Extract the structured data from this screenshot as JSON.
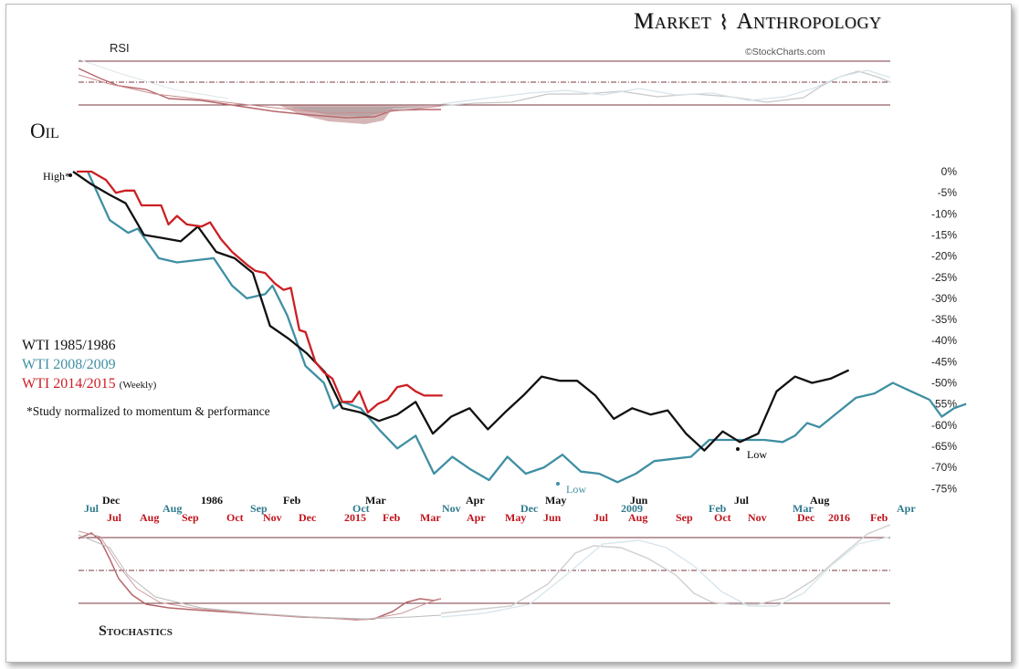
{
  "header": {
    "brand_left": "Market",
    "brand_right": "Anthropology",
    "credit": "©StockCharts.com"
  },
  "panels": {
    "rsi_label": "RSI",
    "main_title": "Oil",
    "stochastics_label": "Stochastics"
  },
  "legend": {
    "items": [
      {
        "label": "WTI 1985/1986",
        "suffix": "",
        "color": "#111111"
      },
      {
        "label": "WTI 2008/2009",
        "suffix": "",
        "color": "#3f8fa3"
      },
      {
        "label": "WTI 2014/2015",
        "suffix": "(Weekly)",
        "color": "#cc1f24"
      }
    ],
    "note": "*Study normalized to momentum & performance"
  },
  "colors": {
    "black_series": "#111111",
    "teal_series": "#3f8fa3",
    "red_series": "#cc1f24",
    "guide_lines": "#7a3a40",
    "date_teal": "#2f7a8e",
    "date_red": "#c0141c"
  },
  "annotations": {
    "high": "High*",
    "low_black": "Low",
    "low_teal": "Low"
  },
  "x_axis": {
    "black_dates": [
      "Dec",
      "1986",
      "Feb",
      "Mar",
      "Apr",
      "May",
      "Jun",
      "Jul",
      "Aug"
    ],
    "teal_dates": [
      "Jul",
      "Aug",
      "Sep",
      "Oct",
      "Nov",
      "Dec",
      "2009",
      "Feb",
      "Mar",
      "Apr"
    ],
    "red_dates": [
      "Jul",
      "Aug",
      "Sep",
      "Oct",
      "Nov",
      "Dec",
      "2015",
      "Feb",
      "Mar",
      "Apr",
      "May",
      "Jun",
      "Jul",
      "Aug",
      "Sep",
      "Oct",
      "Nov",
      "Dec",
      "2016",
      "Feb"
    ]
  },
  "chart_data": {
    "type": "line",
    "y_unit": "% from high",
    "ylim": [
      -75,
      0
    ],
    "y_ticks": [
      "0%",
      "-5%",
      "-10%",
      "-15%",
      "-20%",
      "-25%",
      "-30%",
      "-35%",
      "-40%",
      "-45%",
      "-50%",
      "-55%",
      "-60%",
      "-65%",
      "-70%",
      "-75%"
    ],
    "x_unit": "weeks from high",
    "series": [
      {
        "name": "WTI 1985/1986",
        "points": [
          [
            0,
            0
          ],
          [
            1.5,
            -3
          ],
          [
            3,
            -5.5
          ],
          [
            4.3,
            -7.5
          ],
          [
            5.8,
            -15
          ],
          [
            7.3,
            -15.7
          ],
          [
            8.8,
            -16.5
          ],
          [
            10.2,
            -13
          ],
          [
            11.7,
            -19
          ],
          [
            13.2,
            -20.5
          ],
          [
            14.7,
            -24
          ],
          [
            16.1,
            -36.5
          ],
          [
            17.6,
            -39.5
          ],
          [
            19.1,
            -43
          ],
          [
            20.6,
            -47.5
          ],
          [
            22,
            -56
          ],
          [
            23.5,
            -57
          ],
          [
            25,
            -59
          ],
          [
            26.5,
            -57.5
          ],
          [
            28,
            -54.5
          ],
          [
            29.4,
            -62
          ],
          [
            30.9,
            -58
          ],
          [
            32.4,
            -56
          ],
          [
            33.9,
            -61
          ],
          [
            35.3,
            -57
          ],
          [
            36.8,
            -53
          ],
          [
            38.3,
            -48.5
          ],
          [
            39.8,
            -49.5
          ],
          [
            41.2,
            -49.5
          ],
          [
            42.7,
            -53
          ],
          [
            44.2,
            -58.5
          ],
          [
            45.7,
            -56
          ],
          [
            47.2,
            -57.5
          ],
          [
            48.6,
            -56.5
          ],
          [
            50.1,
            -62
          ],
          [
            51.6,
            -66
          ],
          [
            53.1,
            -61.5
          ],
          [
            54.5,
            -64
          ],
          [
            56,
            -62
          ],
          [
            57.5,
            -52
          ],
          [
            59,
            -48.5
          ],
          [
            60.4,
            -50
          ],
          [
            61.9,
            -49
          ],
          [
            63.4,
            -47
          ]
        ]
      },
      {
        "name": "WTI 2008/2009",
        "points": [
          [
            1.2,
            0
          ],
          [
            3,
            -11.5
          ],
          [
            4.5,
            -14.5
          ],
          [
            5.3,
            -13.5
          ],
          [
            7,
            -20.5
          ],
          [
            8.5,
            -21.5
          ],
          [
            11.5,
            -20.5
          ],
          [
            13,
            -27
          ],
          [
            14.2,
            -30
          ],
          [
            15.7,
            -29
          ],
          [
            16.3,
            -27
          ],
          [
            17.5,
            -34
          ],
          [
            19,
            -46
          ],
          [
            20.5,
            -50
          ],
          [
            21.3,
            -56
          ],
          [
            22,
            -54.5
          ],
          [
            23.5,
            -56
          ],
          [
            25,
            -61
          ],
          [
            26.5,
            -65.5
          ],
          [
            28,
            -62.5
          ],
          [
            29.5,
            -71.5
          ],
          [
            31,
            -67.5
          ],
          [
            32.5,
            -70.5
          ],
          [
            34,
            -73
          ],
          [
            35.5,
            -67.5
          ],
          [
            37,
            -71.5
          ],
          [
            38.5,
            -70
          ],
          [
            40,
            -67
          ],
          [
            41.5,
            -71
          ],
          [
            43,
            -71.5
          ],
          [
            44.5,
            -73.5
          ],
          [
            46,
            -71.5
          ],
          [
            47.5,
            -68.5
          ],
          [
            49,
            -68
          ],
          [
            50.5,
            -67.5
          ],
          [
            52,
            -63.5
          ],
          [
            53.5,
            -63.5
          ],
          [
            56.5,
            -63.5
          ],
          [
            58,
            -64
          ],
          [
            59,
            -62.5
          ],
          [
            60,
            -59.5
          ],
          [
            61,
            -60.5
          ],
          [
            62.5,
            -57
          ],
          [
            64,
            -53.5
          ],
          [
            65.5,
            -52.5
          ],
          [
            67,
            -50
          ],
          [
            68.5,
            -52
          ],
          [
            70,
            -54
          ],
          [
            71,
            -58
          ],
          [
            72,
            -56
          ],
          [
            73,
            -55
          ]
        ]
      },
      {
        "name": "WTI 2014/2015",
        "points": [
          [
            0.3,
            0
          ],
          [
            1.5,
            0
          ],
          [
            2.7,
            -2
          ],
          [
            3.5,
            -5
          ],
          [
            4.3,
            -4.5
          ],
          [
            5,
            -4.5
          ],
          [
            5.6,
            -8
          ],
          [
            7.2,
            -8
          ],
          [
            7.8,
            -12.5
          ],
          [
            8.5,
            -10.5
          ],
          [
            9.3,
            -12.5
          ],
          [
            10.5,
            -13
          ],
          [
            11.2,
            -12
          ],
          [
            12.1,
            -16
          ],
          [
            13,
            -19
          ],
          [
            14.2,
            -22
          ],
          [
            14.9,
            -23.5
          ],
          [
            15.7,
            -24
          ],
          [
            16.5,
            -26.5
          ],
          [
            17.2,
            -28
          ],
          [
            17.8,
            -27.5
          ],
          [
            18.5,
            -37.5
          ],
          [
            19,
            -38
          ],
          [
            19.8,
            -45
          ],
          [
            20.5,
            -47.5
          ],
          [
            21.2,
            -49
          ],
          [
            22,
            -54.5
          ],
          [
            22.8,
            -54.5
          ],
          [
            23.4,
            -52
          ],
          [
            24.1,
            -57
          ],
          [
            24.9,
            -55
          ],
          [
            25.7,
            -54
          ],
          [
            26.5,
            -51
          ],
          [
            27.3,
            -50.5
          ],
          [
            28,
            -52
          ],
          [
            28.7,
            -53
          ],
          [
            29.5,
            -53
          ],
          [
            30.2,
            -53
          ]
        ]
      }
    ]
  }
}
